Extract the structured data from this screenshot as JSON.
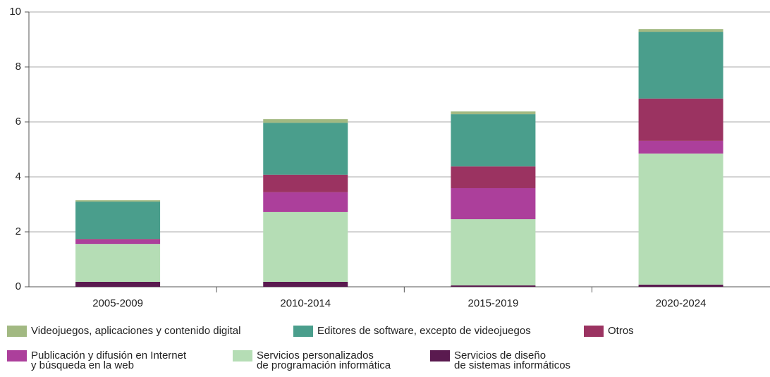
{
  "chart_data": {
    "type": "stacked-bar",
    "categories": [
      "2005-2009",
      "2010-2014",
      "2015-2019",
      "2020-2024"
    ],
    "series": [
      {
        "name": "Servicios de diseño\nde sistemas informáticos",
        "color": "#5a1a4f",
        "values": [
          0.18,
          0.18,
          0.05,
          0.08
        ]
      },
      {
        "name": "Servicios personalizados\nde programación informática",
        "color": "#b5ddb5",
        "values": [
          1.38,
          2.54,
          2.41,
          4.77
        ]
      },
      {
        "name": "Publicación y difusión en Internet\ny búsqueda en la web",
        "color": "#ac3f9b",
        "values": [
          0.16,
          0.72,
          1.13,
          0.46
        ]
      },
      {
        "name": "Otros",
        "color": "#9b3361",
        "values": [
          0.02,
          0.64,
          0.79,
          1.54
        ]
      },
      {
        "name": "Editores de software, excepto de videojuegos",
        "color": "#4a9e8c",
        "values": [
          1.36,
          1.89,
          1.9,
          2.43
        ]
      },
      {
        "name": "Videojuegos, aplicaciones y contenido digital",
        "color": "#a2b982",
        "values": [
          0.05,
          0.13,
          0.1,
          0.1
        ]
      }
    ],
    "ylim": [
      0,
      10
    ],
    "yticks": [
      0,
      2,
      4,
      6,
      8,
      10
    ],
    "grid": true
  }
}
